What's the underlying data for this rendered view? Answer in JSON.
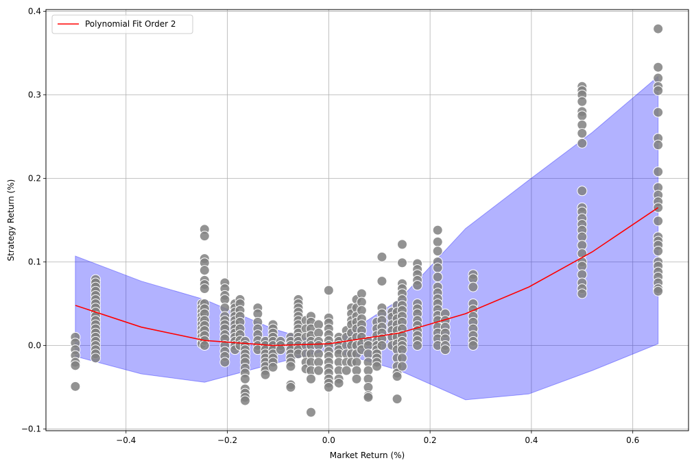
{
  "chart_data": {
    "type": "scatter",
    "title": "",
    "xlabel": "Market Return (%)",
    "ylabel": "Strategy Return (%)",
    "xlim": [
      -0.558,
      0.71
    ],
    "ylim": [
      -0.102,
      0.402
    ],
    "xticks": [
      -0.4,
      -0.2,
      0.0,
      0.2,
      0.4,
      0.6
    ],
    "xtick_labels": [
      "−0.4",
      "−0.2",
      "0.0",
      "0.2",
      "0.4",
      "0.6"
    ],
    "yticks": [
      -0.1,
      0.0,
      0.1,
      0.2,
      0.3,
      0.4
    ],
    "ytick_labels": [
      "−0.1",
      "0.0",
      "0.1",
      "0.2",
      "0.3",
      "0.4"
    ],
    "grid": true,
    "legend": {
      "position": "top-left",
      "entries": [
        "Polynomial Fit Order 2"
      ]
    },
    "colors": {
      "scatter": "#808080",
      "scatter_edge": "#ffffff",
      "fit": "#ff0000",
      "band": "#0000ff"
    },
    "scatter": [
      {
        "x": -0.5,
        "ys": [
          0.01,
          0.003,
          -0.005,
          -0.012,
          -0.02,
          -0.024,
          -0.049
        ]
      },
      {
        "x": -0.46,
        "ys": [
          0.079,
          0.075,
          0.07,
          0.065,
          0.06,
          0.055,
          0.05,
          0.045,
          0.04,
          0.035,
          0.03,
          0.025,
          0.02,
          0.015,
          0.01,
          0.005,
          0.0,
          -0.005,
          -0.01,
          -0.015
        ]
      },
      {
        "x": -0.25,
        "ys": [
          0.05,
          0.045,
          0.04,
          0.035,
          0.03,
          0.025,
          0.02,
          0.015,
          0.01,
          0.005,
          0.002
        ]
      },
      {
        "x": -0.245,
        "ys": [
          0.139,
          0.131,
          0.104,
          0.099,
          0.09,
          0.078,
          0.073,
          0.068,
          0.05,
          0.044,
          0.038,
          0.03,
          0.024,
          0.018,
          0.012,
          0.006,
          0.0
        ]
      },
      {
        "x": -0.205,
        "ys": [
          0.075,
          0.068,
          0.06,
          0.055,
          0.045,
          0.035,
          0.03,
          0.025,
          0.02,
          0.013,
          0.008,
          0.0,
          -0.007,
          -0.013,
          -0.02
        ]
      },
      {
        "x": -0.185,
        "ys": [
          0.05,
          0.045,
          0.04,
          0.035,
          0.03,
          0.025,
          0.02,
          0.015,
          0.01,
          0.005,
          0.0,
          -0.005
        ]
      },
      {
        "x": -0.175,
        "ys": [
          0.055,
          0.05,
          0.042,
          0.035,
          0.028,
          0.02,
          0.013,
          0.006,
          0.0
        ]
      },
      {
        "x": -0.165,
        "ys": [
          0.005,
          0.0,
          -0.005,
          -0.01,
          -0.015,
          -0.02,
          -0.027,
          -0.033,
          -0.04,
          -0.052,
          -0.057,
          -0.062,
          -0.066
        ]
      },
      {
        "x": -0.14,
        "ys": [
          0.045,
          0.038,
          0.028,
          0.02,
          0.013,
          0.006,
          0.0,
          -0.005
        ]
      },
      {
        "x": -0.125,
        "ys": [
          0.005,
          0.0,
          -0.005,
          -0.01,
          -0.015,
          -0.02,
          -0.025,
          -0.03,
          -0.035
        ]
      },
      {
        "x": -0.11,
        "ys": [
          0.025,
          0.02,
          0.015,
          0.01,
          0.005,
          0.0,
          -0.005,
          -0.01,
          -0.015,
          -0.02,
          -0.026
        ]
      },
      {
        "x": -0.095,
        "ys": [
          0.005,
          0.0,
          -0.005
        ]
      },
      {
        "x": -0.075,
        "ys": [
          0.01,
          0.005,
          0.0,
          -0.005,
          -0.01,
          -0.015,
          -0.02,
          -0.025,
          -0.047,
          -0.05
        ]
      },
      {
        "x": -0.06,
        "ys": [
          0.055,
          0.05,
          0.045,
          0.04,
          0.035,
          0.03,
          0.025,
          0.02,
          0.015,
          0.01,
          0.005,
          0.0,
          -0.005,
          -0.01
        ]
      },
      {
        "x": -0.045,
        "ys": [
          0.03,
          0.02,
          0.01,
          0.0,
          -0.01,
          -0.02,
          -0.028
        ]
      },
      {
        "x": -0.035,
        "ys": [
          0.035,
          0.028,
          0.02,
          0.012,
          0.005,
          0.0,
          -0.01,
          -0.02,
          -0.03,
          -0.04,
          -0.08
        ]
      },
      {
        "x": -0.02,
        "ys": [
          0.025,
          0.015,
          0.005,
          0.0,
          -0.01,
          -0.02,
          -0.03
        ]
      },
      {
        "x": 0.0,
        "ys": [
          0.066,
          0.033,
          0.027,
          0.02,
          0.013,
          0.006,
          0.0,
          -0.007,
          -0.013,
          -0.02,
          -0.027,
          -0.033,
          -0.04,
          -0.045,
          -0.05
        ]
      },
      {
        "x": 0.02,
        "ys": [
          0.01,
          0.005,
          0.0,
          -0.005,
          -0.01,
          -0.02,
          -0.03,
          -0.04,
          -0.045
        ]
      },
      {
        "x": 0.035,
        "ys": [
          0.018,
          0.01,
          0.0,
          -0.01,
          -0.02,
          -0.03
        ]
      },
      {
        "x": 0.045,
        "ys": [
          0.045,
          0.038,
          0.03,
          0.025,
          0.015,
          0.005,
          0.0,
          -0.01,
          -0.02
        ]
      },
      {
        "x": 0.055,
        "ys": [
          0.055,
          0.045,
          0.035,
          0.028,
          0.02,
          0.01,
          0.0,
          -0.01,
          -0.02,
          -0.03,
          -0.04
        ]
      },
      {
        "x": 0.065,
        "ys": [
          0.062,
          0.052,
          0.042,
          0.032,
          0.025,
          0.018,
          0.01,
          0.002,
          -0.005
        ]
      },
      {
        "x": 0.078,
        "ys": [
          0.005,
          0.0,
          -0.01,
          -0.02,
          -0.03,
          -0.04,
          -0.05,
          -0.06,
          -0.062
        ]
      },
      {
        "x": 0.095,
        "ys": [
          0.028,
          0.02,
          0.012,
          0.005,
          0.0,
          -0.005,
          -0.01,
          -0.015,
          -0.02,
          -0.025
        ]
      },
      {
        "x": 0.105,
        "ys": [
          0.106,
          0.077,
          0.045,
          0.038,
          0.03,
          0.022,
          0.015,
          0.008,
          0.0
        ]
      },
      {
        "x": 0.125,
        "ys": [
          0.04,
          0.034,
          0.025,
          0.018,
          0.01,
          0.0
        ]
      },
      {
        "x": 0.135,
        "ys": [
          0.048,
          0.04,
          0.032,
          0.025,
          0.018,
          0.01,
          0.002,
          -0.005,
          -0.015,
          -0.025,
          -0.033,
          -0.037,
          -0.064
        ]
      },
      {
        "x": 0.145,
        "ys": [
          0.121,
          0.099,
          0.074,
          0.068,
          0.062,
          0.055,
          0.048,
          0.042,
          0.035,
          0.028,
          0.02,
          0.012,
          0.005,
          0.0,
          -0.005,
          -0.015,
          -0.025
        ]
      },
      {
        "x": 0.175,
        "ys": [
          0.098,
          0.091,
          0.085,
          0.078,
          0.072,
          0.05,
          0.044,
          0.038,
          0.03,
          0.024,
          0.018,
          0.012,
          0.006,
          0.0
        ]
      },
      {
        "x": 0.215,
        "ys": [
          0.138,
          0.124,
          0.113,
          0.1,
          0.093,
          0.082,
          0.07,
          0.063,
          0.056,
          0.05,
          0.043,
          0.036,
          0.03,
          0.022,
          0.015,
          0.008,
          0.0
        ]
      },
      {
        "x": 0.23,
        "ys": [
          0.038,
          0.03,
          0.022,
          0.015,
          0.008,
          0.0,
          -0.005
        ]
      },
      {
        "x": 0.285,
        "ys": [
          0.085,
          0.08,
          0.07,
          0.05,
          0.043,
          0.035,
          0.028,
          0.02,
          0.012,
          0.005,
          0.0
        ]
      },
      {
        "x": 0.5,
        "ys": [
          0.31,
          0.305,
          0.3,
          0.292,
          0.28,
          0.275,
          0.264,
          0.254,
          0.242,
          0.185,
          0.165,
          0.16,
          0.152,
          0.145,
          0.138,
          0.13,
          0.12,
          0.11,
          0.1,
          0.095,
          0.085,
          0.075,
          0.068,
          0.062
        ]
      },
      {
        "x": 0.65,
        "ys": [
          0.379,
          0.333,
          0.32,
          0.31,
          0.305,
          0.279,
          0.248,
          0.24,
          0.208,
          0.189,
          0.18,
          0.172,
          0.165,
          0.149,
          0.13,
          0.125,
          0.12,
          0.113,
          0.1,
          0.095,
          0.088,
          0.082,
          0.075,
          0.068,
          0.065
        ]
      }
    ],
    "fit_line": {
      "name": "Polynomial Fit Order 2",
      "x": [
        -0.5,
        -0.37,
        -0.245,
        -0.11,
        0.0,
        0.14,
        0.27,
        0.395,
        0.52,
        0.65
      ],
      "y": [
        0.048,
        0.022,
        0.006,
        0.0,
        0.002,
        0.015,
        0.038,
        0.07,
        0.112,
        0.165
      ]
    },
    "band": {
      "x": [
        -0.5,
        -0.37,
        -0.245,
        -0.11,
        0.0,
        0.14,
        0.27,
        0.395,
        0.52,
        0.65
      ],
      "upper": [
        0.107,
        0.077,
        0.055,
        0.02,
        0.0,
        0.055,
        0.14,
        0.198,
        0.255,
        0.322
      ],
      "lower": [
        -0.013,
        -0.034,
        -0.044,
        -0.022,
        -0.005,
        -0.03,
        -0.065,
        -0.058,
        -0.03,
        0.002
      ]
    }
  }
}
